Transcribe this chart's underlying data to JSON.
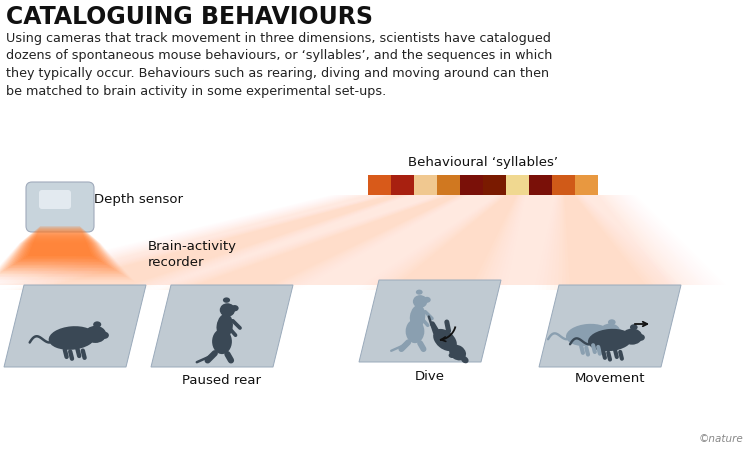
{
  "title": "CATALOGUING BEHAVIOURS",
  "subtitle": "Using cameras that track movement in three dimensions, scientists have catalogued\ndozens of spontaneous mouse behaviours, or ‘syllables’, and the sequences in which\nthey typically occur. Behaviours such as rearing, diving and moving around can then\nbe matched to brain activity in some experimental set-ups.",
  "depth_sensor_label": "Depth sensor",
  "brain_recorder_label": "Brain-activity\nrecorder",
  "syllables_label": "Behavioural ‘syllables’",
  "platform_labels": [
    "Paused rear",
    "Dive",
    "Movement"
  ],
  "syllable_colors": [
    "#D85A1A",
    "#A82010",
    "#F0C890",
    "#D07820",
    "#7A1008",
    "#7A1A00",
    "#F0D890",
    "#7A1008",
    "#D05A18",
    "#E89840"
  ],
  "bg_color": "#ffffff",
  "platform_color": "#C0CAD2",
  "platform_edge": "#9AAABB",
  "mouse_dark": "#3A4855",
  "mouse_ghost": "#8A9FB0",
  "nature_text": "©nature",
  "title_fontsize": 17,
  "subtitle_fontsize": 9.2,
  "label_fontsize": 9.5,
  "sensor_label_fontsize": 9.5,
  "nature_fontsize": 7.5
}
